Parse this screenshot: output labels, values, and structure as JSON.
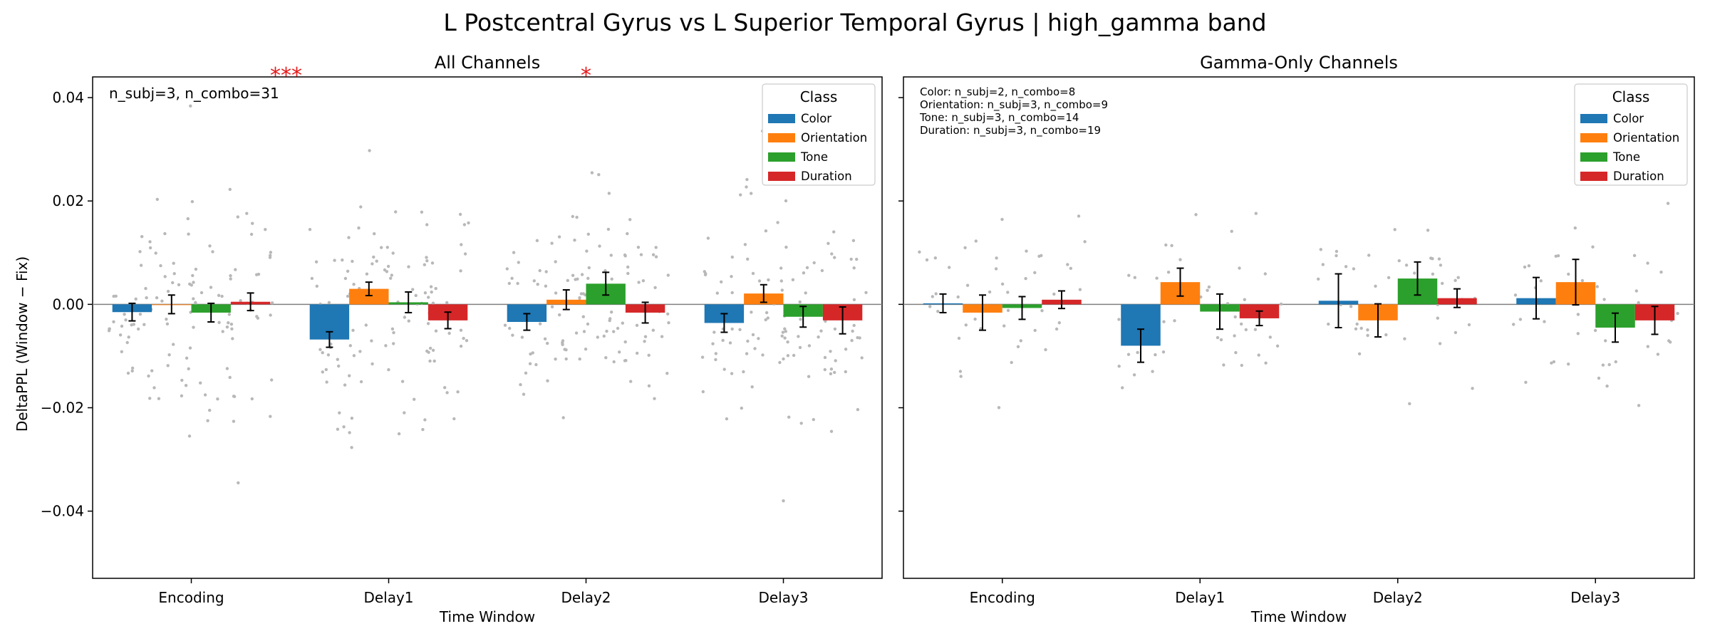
{
  "figure": {
    "title": "L Postcentral Gyrus vs L Superior Temporal Gyrus  |  high_gamma band"
  },
  "legend": {
    "title": "Class",
    "entries": [
      {
        "label": "Color",
        "color": "#1f77b4"
      },
      {
        "label": "Orientation",
        "color": "#ff7f0e"
      },
      {
        "label": "Tone",
        "color": "#2ca02c"
      },
      {
        "label": "Duration",
        "color": "#d62728"
      }
    ]
  },
  "chart_data": [
    {
      "type": "bar",
      "title": "All Channels",
      "xlabel": "Time Window",
      "ylabel": "DeltaPPL (Window − Fix)",
      "ylim": [
        -0.053,
        0.044
      ],
      "yticks": [
        "0.04",
        "0.02",
        "0.00",
        "−0.02",
        "−0.04"
      ],
      "ytick_values": [
        0.04,
        0.02,
        0.0,
        -0.02,
        -0.04
      ],
      "categories": [
        "Encoding",
        "Delay1",
        "Delay2",
        "Delay3"
      ],
      "series": [
        {
          "name": "Color",
          "color": "#1f77b4",
          "values": [
            -0.0015,
            -0.0068,
            -0.0034,
            -0.0036
          ],
          "errors": [
            0.0017,
            0.0015,
            0.0016,
            0.0018
          ]
        },
        {
          "name": "Orientation",
          "color": "#ff7f0e",
          "values": [
            0.0,
            0.003,
            0.0009,
            0.0021
          ],
          "errors": [
            0.0018,
            0.0013,
            0.0019,
            0.0017
          ]
        },
        {
          "name": "Tone",
          "color": "#2ca02c",
          "values": [
            -0.0016,
            0.0004,
            0.004,
            -0.0024
          ],
          "errors": [
            0.0018,
            0.002,
            0.0022,
            0.002
          ]
        },
        {
          "name": "Duration",
          "color": "#d62728",
          "values": [
            0.0005,
            -0.0031,
            -0.0016,
            -0.0031
          ],
          "errors": [
            0.0017,
            0.0016,
            0.002,
            0.0026
          ]
        }
      ],
      "annotations": [
        "n_subj=3, n_combo=31"
      ],
      "significance": [
        {
          "category": "Delay1",
          "text": "***"
        },
        {
          "category": "Delay2",
          "text": "*"
        }
      ],
      "grid": false,
      "legend_position": "upper right"
    },
    {
      "type": "bar",
      "title": "Gamma-Only Channels",
      "xlabel": "Time Window",
      "ylabel": "",
      "ylim": [
        -0.053,
        0.044
      ],
      "categories": [
        "Encoding",
        "Delay1",
        "Delay2",
        "Delay3"
      ],
      "series": [
        {
          "name": "Color",
          "color": "#1f77b4",
          "values": [
            0.0002,
            -0.008,
            0.0007,
            0.0012
          ],
          "errors": [
            0.0018,
            0.0032,
            0.0052,
            0.004
          ]
        },
        {
          "name": "Orientation",
          "color": "#ff7f0e",
          "values": [
            -0.0016,
            0.0043,
            -0.0031,
            0.0043
          ],
          "errors": [
            0.0034,
            0.0027,
            0.0032,
            0.0044
          ]
        },
        {
          "name": "Tone",
          "color": "#2ca02c",
          "values": [
            -0.0007,
            -0.0014,
            0.005,
            -0.0045
          ],
          "errors": [
            0.0022,
            0.0034,
            0.0032,
            0.0028
          ]
        },
        {
          "name": "Duration",
          "color": "#d62728",
          "values": [
            0.0009,
            -0.0027,
            0.0012,
            -0.0031
          ],
          "errors": [
            0.0017,
            0.0014,
            0.0018,
            0.0027
          ]
        }
      ],
      "annotations": [
        "Color: n_subj=2, n_combo=8",
        "Orientation: n_subj=3, n_combo=9",
        "Tone: n_subj=3, n_combo=14",
        "Duration: n_subj=3, n_combo=19"
      ],
      "grid": false,
      "legend_position": "upper right"
    }
  ]
}
